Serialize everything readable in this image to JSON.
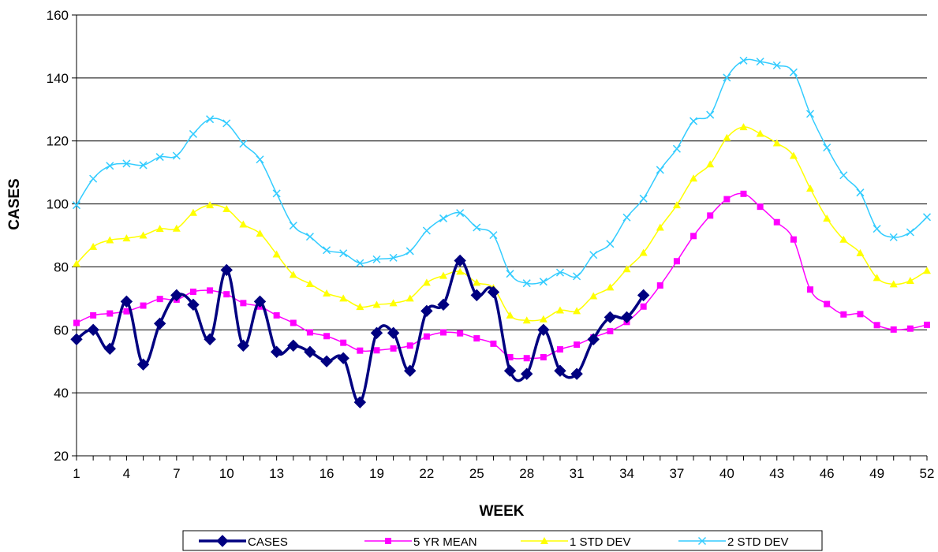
{
  "chart_data": {
    "type": "line",
    "title": "",
    "xlabel": "WEEK",
    "ylabel": "CASES",
    "xlim": [
      1,
      52
    ],
    "ylim": [
      20,
      160
    ],
    "yticks": [
      20,
      40,
      60,
      80,
      100,
      120,
      140,
      160
    ],
    "xticks": [
      1,
      4,
      7,
      10,
      13,
      16,
      19,
      22,
      25,
      28,
      31,
      34,
      37,
      40,
      43,
      46,
      49,
      52
    ],
    "grid": "horizontal",
    "legend_position": "bottom",
    "series": [
      {
        "name": "CASES",
        "color": "#000080",
        "marker": "diamond",
        "x": [
          1,
          2,
          3,
          4,
          5,
          6,
          7,
          8,
          9,
          10,
          11,
          12,
          13,
          14,
          15,
          16,
          17,
          18,
          19,
          20,
          21,
          22,
          23,
          24,
          25,
          26,
          27,
          28,
          29,
          30,
          31,
          32,
          33,
          34,
          35
        ],
        "values": [
          57,
          60,
          54,
          69,
          49,
          62,
          71,
          68,
          57,
          79,
          55,
          69,
          53,
          55,
          53,
          50,
          51,
          37,
          59,
          59,
          47,
          66,
          68,
          82,
          71,
          72,
          47,
          46,
          60,
          47,
          46,
          57,
          64,
          64,
          71
        ]
      },
      {
        "name": "5 YR MEAN",
        "color": "#ff00ff",
        "marker": "square",
        "x": [
          1,
          2,
          3,
          4,
          5,
          6,
          7,
          8,
          9,
          10,
          11,
          12,
          13,
          14,
          15,
          16,
          17,
          18,
          19,
          20,
          21,
          22,
          23,
          24,
          25,
          26,
          27,
          28,
          29,
          30,
          31,
          32,
          33,
          34,
          35,
          36,
          37,
          38,
          39,
          40,
          41,
          42,
          43,
          44,
          45,
          46,
          47,
          48,
          49,
          50,
          51,
          52
        ],
        "values": [
          62.2,
          64.6,
          65.2,
          65.9,
          67.7,
          69.8,
          69.6,
          72.1,
          72.5,
          71.3,
          68.5,
          67.4,
          64.6,
          62.2,
          59.2,
          58.0,
          55.9,
          53.4,
          53.5,
          54.1,
          55.0,
          57.9,
          59.2,
          58.9,
          57.3,
          55.6,
          51.3,
          51.0,
          51.3,
          53.8,
          55.3,
          57.6,
          59.6,
          62.5,
          67.4,
          74.1,
          81.8,
          89.8,
          96.3,
          101.5,
          103.2,
          99.1,
          94.2,
          88.7,
          72.8,
          68.2,
          64.9,
          65.0,
          61.5,
          60.1,
          60.4,
          61.6
        ]
      },
      {
        "name": "1 STD DEV",
        "color": "#ffff00",
        "marker": "triangle",
        "x": [
          1,
          2,
          3,
          4,
          5,
          6,
          7,
          8,
          9,
          10,
          11,
          12,
          13,
          14,
          15,
          16,
          17,
          18,
          19,
          20,
          21,
          22,
          23,
          24,
          25,
          26,
          27,
          28,
          29,
          30,
          31,
          32,
          33,
          34,
          35,
          36,
          37,
          38,
          39,
          40,
          41,
          42,
          43,
          44,
          45,
          46,
          47,
          48,
          49,
          50,
          51,
          52
        ],
        "values": [
          81.0,
          86.4,
          88.5,
          89.1,
          90.0,
          92.1,
          92.2,
          97.2,
          99.6,
          98.4,
          93.5,
          90.6,
          84.0,
          77.5,
          74.6,
          71.6,
          70.0,
          67.3,
          68.0,
          68.5,
          70.0,
          75.0,
          77.2,
          78.5,
          75.0,
          73.3,
          64.6,
          63.0,
          63.4,
          66.2,
          66.0,
          70.7,
          73.5,
          79.3,
          84.5,
          92.5,
          99.6,
          108.1,
          112.6,
          121.0,
          124.4,
          122.3,
          119.3,
          115.3,
          104.9,
          95.4,
          88.7,
          84.4,
          76.5,
          74.5,
          75.6,
          78.8
        ]
      },
      {
        "name": "2 STD DEV",
        "color": "#33ccff",
        "marker": "x",
        "x": [
          1,
          2,
          3,
          4,
          5,
          6,
          7,
          8,
          9,
          10,
          11,
          12,
          13,
          14,
          15,
          16,
          17,
          18,
          19,
          20,
          21,
          22,
          23,
          24,
          25,
          26,
          27,
          28,
          29,
          30,
          31,
          32,
          33,
          34,
          35,
          36,
          37,
          38,
          39,
          40,
          41,
          42,
          43,
          44,
          45,
          46,
          47,
          48,
          49,
          50,
          51,
          52
        ],
        "values": [
          99.6,
          108.0,
          112.1,
          112.8,
          112.3,
          114.9,
          115.3,
          122.2,
          126.9,
          125.6,
          119.1,
          114.1,
          103.3,
          93.1,
          89.6,
          85.3,
          84.3,
          81.2,
          82.4,
          82.9,
          85.0,
          91.5,
          95.4,
          97.1,
          92.5,
          90.1,
          77.8,
          74.8,
          75.3,
          78.2,
          77.0,
          83.8,
          87.3,
          95.7,
          101.7,
          110.8,
          117.5,
          126.3,
          128.3,
          140.1,
          145.5,
          145.2,
          144.0,
          141.8,
          128.6,
          117.9,
          109.1,
          103.6,
          92.1,
          89.4,
          91.0,
          95.8
        ]
      }
    ]
  }
}
